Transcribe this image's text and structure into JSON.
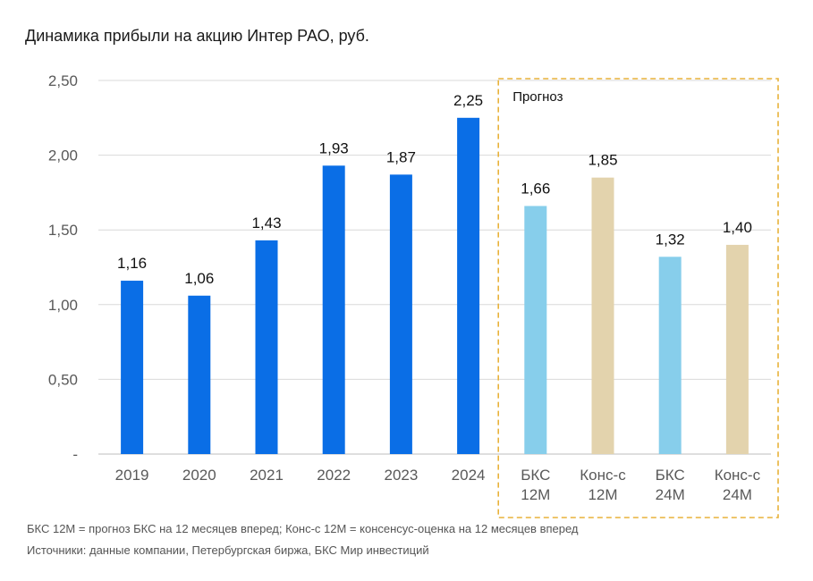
{
  "chart_data": {
    "type": "bar",
    "title": "Динамика прибыли на акцию Интер РАО, руб.",
    "categories": [
      "2019",
      "2020",
      "2021",
      "2022",
      "2023",
      "2024",
      "БКС\n12М",
      "Конс-с\n12М",
      "БКС\n24М",
      "Конс-с\n24М"
    ],
    "values": [
      1.16,
      1.06,
      1.43,
      1.93,
      1.87,
      2.25,
      1.66,
      1.85,
      1.32,
      1.4
    ],
    "value_labels": [
      "1,16",
      "1,06",
      "1,43",
      "1,93",
      "1,87",
      "2,25",
      "1,66",
      "1,85",
      "1,32",
      "1,40"
    ],
    "bar_colors": [
      "#0a6ee6",
      "#0a6ee6",
      "#0a6ee6",
      "#0a6ee6",
      "#0a6ee6",
      "#0a6ee6",
      "#87ceeb",
      "#e3d3ad",
      "#87ceeb",
      "#e3d3ad"
    ],
    "ylim": [
      0,
      2.5
    ],
    "yticks": [
      0,
      0.5,
      1.0,
      1.5,
      2.0,
      2.5
    ],
    "ytick_labels": [
      "-",
      "0,50",
      "1,00",
      "1,50",
      "2,00",
      "2,50"
    ],
    "grid": true,
    "forecast_box_label": "Прогноз",
    "forecast_box_color": "#e8b23a",
    "forecast_start_index": 6
  },
  "footnotes": {
    "definitions": "БКС 12М = прогноз БКС на 12 месяцев вперед; Конс-с 12М = консенсус-оценка на 12 месяцев вперед",
    "sources": "Источники: данные компании, Петербургская биржа, БКС Мир инвестиций"
  }
}
